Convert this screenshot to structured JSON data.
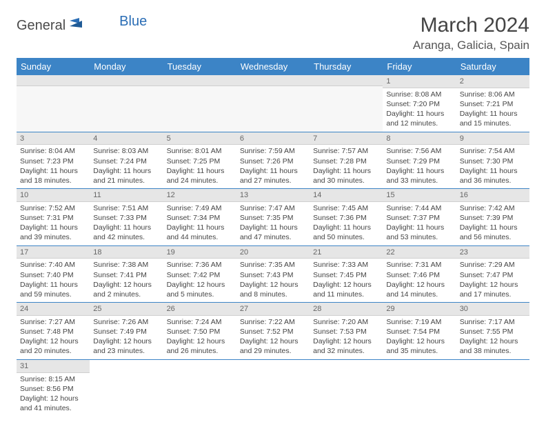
{
  "brand": {
    "general": "General",
    "blue": "Blue"
  },
  "title": "March 2024",
  "location": "Aranga, Galicia, Spain",
  "columns": [
    "Sunday",
    "Monday",
    "Tuesday",
    "Wednesday",
    "Thursday",
    "Friday",
    "Saturday"
  ],
  "colors": {
    "header_bg": "#3c84c6",
    "header_text": "#ffffff",
    "daynum_bg": "#e6e6e6",
    "row_border": "#3c84c6",
    "logo_blue": "#2a6db5"
  },
  "weeks": [
    [
      null,
      null,
      null,
      null,
      null,
      {
        "n": "1",
        "sunrise": "Sunrise: 8:08 AM",
        "sunset": "Sunset: 7:20 PM",
        "daylight": "Daylight: 11 hours and 12 minutes."
      },
      {
        "n": "2",
        "sunrise": "Sunrise: 8:06 AM",
        "sunset": "Sunset: 7:21 PM",
        "daylight": "Daylight: 11 hours and 15 minutes."
      }
    ],
    [
      {
        "n": "3",
        "sunrise": "Sunrise: 8:04 AM",
        "sunset": "Sunset: 7:23 PM",
        "daylight": "Daylight: 11 hours and 18 minutes."
      },
      {
        "n": "4",
        "sunrise": "Sunrise: 8:03 AM",
        "sunset": "Sunset: 7:24 PM",
        "daylight": "Daylight: 11 hours and 21 minutes."
      },
      {
        "n": "5",
        "sunrise": "Sunrise: 8:01 AM",
        "sunset": "Sunset: 7:25 PM",
        "daylight": "Daylight: 11 hours and 24 minutes."
      },
      {
        "n": "6",
        "sunrise": "Sunrise: 7:59 AM",
        "sunset": "Sunset: 7:26 PM",
        "daylight": "Daylight: 11 hours and 27 minutes."
      },
      {
        "n": "7",
        "sunrise": "Sunrise: 7:57 AM",
        "sunset": "Sunset: 7:28 PM",
        "daylight": "Daylight: 11 hours and 30 minutes."
      },
      {
        "n": "8",
        "sunrise": "Sunrise: 7:56 AM",
        "sunset": "Sunset: 7:29 PM",
        "daylight": "Daylight: 11 hours and 33 minutes."
      },
      {
        "n": "9",
        "sunrise": "Sunrise: 7:54 AM",
        "sunset": "Sunset: 7:30 PM",
        "daylight": "Daylight: 11 hours and 36 minutes."
      }
    ],
    [
      {
        "n": "10",
        "sunrise": "Sunrise: 7:52 AM",
        "sunset": "Sunset: 7:31 PM",
        "daylight": "Daylight: 11 hours and 39 minutes."
      },
      {
        "n": "11",
        "sunrise": "Sunrise: 7:51 AM",
        "sunset": "Sunset: 7:33 PM",
        "daylight": "Daylight: 11 hours and 42 minutes."
      },
      {
        "n": "12",
        "sunrise": "Sunrise: 7:49 AM",
        "sunset": "Sunset: 7:34 PM",
        "daylight": "Daylight: 11 hours and 44 minutes."
      },
      {
        "n": "13",
        "sunrise": "Sunrise: 7:47 AM",
        "sunset": "Sunset: 7:35 PM",
        "daylight": "Daylight: 11 hours and 47 minutes."
      },
      {
        "n": "14",
        "sunrise": "Sunrise: 7:45 AM",
        "sunset": "Sunset: 7:36 PM",
        "daylight": "Daylight: 11 hours and 50 minutes."
      },
      {
        "n": "15",
        "sunrise": "Sunrise: 7:44 AM",
        "sunset": "Sunset: 7:37 PM",
        "daylight": "Daylight: 11 hours and 53 minutes."
      },
      {
        "n": "16",
        "sunrise": "Sunrise: 7:42 AM",
        "sunset": "Sunset: 7:39 PM",
        "daylight": "Daylight: 11 hours and 56 minutes."
      }
    ],
    [
      {
        "n": "17",
        "sunrise": "Sunrise: 7:40 AM",
        "sunset": "Sunset: 7:40 PM",
        "daylight": "Daylight: 11 hours and 59 minutes."
      },
      {
        "n": "18",
        "sunrise": "Sunrise: 7:38 AM",
        "sunset": "Sunset: 7:41 PM",
        "daylight": "Daylight: 12 hours and 2 minutes."
      },
      {
        "n": "19",
        "sunrise": "Sunrise: 7:36 AM",
        "sunset": "Sunset: 7:42 PM",
        "daylight": "Daylight: 12 hours and 5 minutes."
      },
      {
        "n": "20",
        "sunrise": "Sunrise: 7:35 AM",
        "sunset": "Sunset: 7:43 PM",
        "daylight": "Daylight: 12 hours and 8 minutes."
      },
      {
        "n": "21",
        "sunrise": "Sunrise: 7:33 AM",
        "sunset": "Sunset: 7:45 PM",
        "daylight": "Daylight: 12 hours and 11 minutes."
      },
      {
        "n": "22",
        "sunrise": "Sunrise: 7:31 AM",
        "sunset": "Sunset: 7:46 PM",
        "daylight": "Daylight: 12 hours and 14 minutes."
      },
      {
        "n": "23",
        "sunrise": "Sunrise: 7:29 AM",
        "sunset": "Sunset: 7:47 PM",
        "daylight": "Daylight: 12 hours and 17 minutes."
      }
    ],
    [
      {
        "n": "24",
        "sunrise": "Sunrise: 7:27 AM",
        "sunset": "Sunset: 7:48 PM",
        "daylight": "Daylight: 12 hours and 20 minutes."
      },
      {
        "n": "25",
        "sunrise": "Sunrise: 7:26 AM",
        "sunset": "Sunset: 7:49 PM",
        "daylight": "Daylight: 12 hours and 23 minutes."
      },
      {
        "n": "26",
        "sunrise": "Sunrise: 7:24 AM",
        "sunset": "Sunset: 7:50 PM",
        "daylight": "Daylight: 12 hours and 26 minutes."
      },
      {
        "n": "27",
        "sunrise": "Sunrise: 7:22 AM",
        "sunset": "Sunset: 7:52 PM",
        "daylight": "Daylight: 12 hours and 29 minutes."
      },
      {
        "n": "28",
        "sunrise": "Sunrise: 7:20 AM",
        "sunset": "Sunset: 7:53 PM",
        "daylight": "Daylight: 12 hours and 32 minutes."
      },
      {
        "n": "29",
        "sunrise": "Sunrise: 7:19 AM",
        "sunset": "Sunset: 7:54 PM",
        "daylight": "Daylight: 12 hours and 35 minutes."
      },
      {
        "n": "30",
        "sunrise": "Sunrise: 7:17 AM",
        "sunset": "Sunset: 7:55 PM",
        "daylight": "Daylight: 12 hours and 38 minutes."
      }
    ],
    [
      {
        "n": "31",
        "sunrise": "Sunrise: 8:15 AM",
        "sunset": "Sunset: 8:56 PM",
        "daylight": "Daylight: 12 hours and 41 minutes."
      },
      null,
      null,
      null,
      null,
      null,
      null
    ]
  ]
}
